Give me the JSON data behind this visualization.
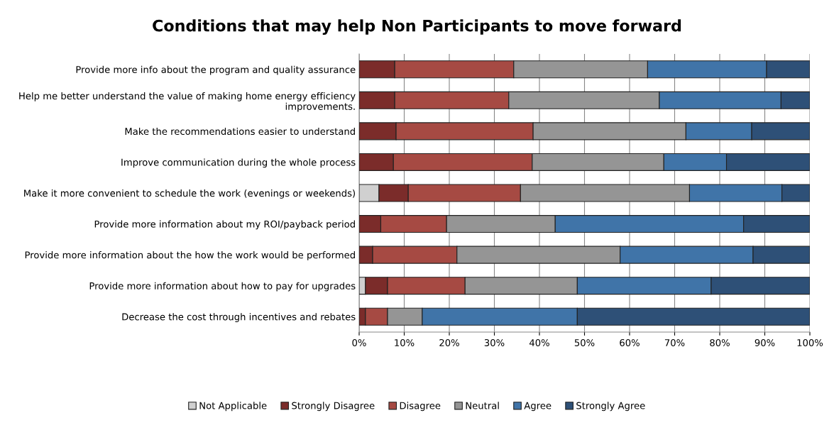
{
  "chart_data": {
    "type": "bar",
    "orientation": "horizontal",
    "stacked": true,
    "title": "Conditions that may help Non Participants to move forward",
    "categories": [
      "Provide more info about the program and quality assurance",
      "Help me better understand the value of making home energy efficiency improvements.",
      "Make the recommendations easier to understand",
      "Improve communication during the whole process",
      "Make it more convenient to schedule the work (evenings or weekends)",
      "Provide more information about my ROI/payback period",
      "Provide more information about the how the work would be performed",
      "Provide more information about how to pay for upgrades",
      "Decrease the cost through incentives and rebates"
    ],
    "series": [
      {
        "name": "Not Applicable",
        "color": "#d0d0d0",
        "values": [
          0,
          0,
          0,
          0,
          4.4,
          0,
          0,
          1.4,
          0
        ]
      },
      {
        "name": "Strongly Disagree",
        "color": "#7b2c2a",
        "values": [
          7.9,
          7.9,
          8.2,
          7.6,
          6.5,
          4.8,
          3.0,
          4.9,
          1.4
        ]
      },
      {
        "name": "Disagree",
        "color": "#a64a43",
        "values": [
          26.4,
          25.3,
          30.4,
          30.8,
          24.9,
          14.6,
          18.7,
          17.2,
          4.9
        ]
      },
      {
        "name": "Neutral",
        "color": "#959595",
        "values": [
          29.7,
          33.4,
          33.9,
          29.2,
          37.5,
          24.1,
          36.2,
          24.9,
          7.7
        ]
      },
      {
        "name": "Agree",
        "color": "#4074a8",
        "values": [
          26.4,
          27.0,
          14.6,
          13.9,
          20.5,
          41.8,
          29.5,
          29.7,
          34.4
        ]
      },
      {
        "name": "Strongly Agree",
        "color": "#2e5077",
        "values": [
          9.6,
          6.4,
          12.9,
          18.5,
          6.2,
          14.7,
          12.6,
          21.9,
          51.6
        ]
      }
    ],
    "xlim": [
      0,
      100
    ],
    "xticks": [
      {
        "value": 0,
        "label": "0%"
      },
      {
        "value": 10,
        "label": "10%"
      },
      {
        "value": 20,
        "label": "20%"
      },
      {
        "value": 30,
        "label": "30%"
      },
      {
        "value": 40,
        "label": "40%"
      },
      {
        "value": 50,
        "label": "50%"
      },
      {
        "value": 60,
        "label": "60%"
      },
      {
        "value": 70,
        "label": "70%"
      },
      {
        "value": 80,
        "label": "80%"
      },
      {
        "value": 90,
        "label": "90%"
      },
      {
        "value": 100,
        "label": "100%"
      }
    ],
    "grid": "x",
    "legend": "bottom"
  }
}
